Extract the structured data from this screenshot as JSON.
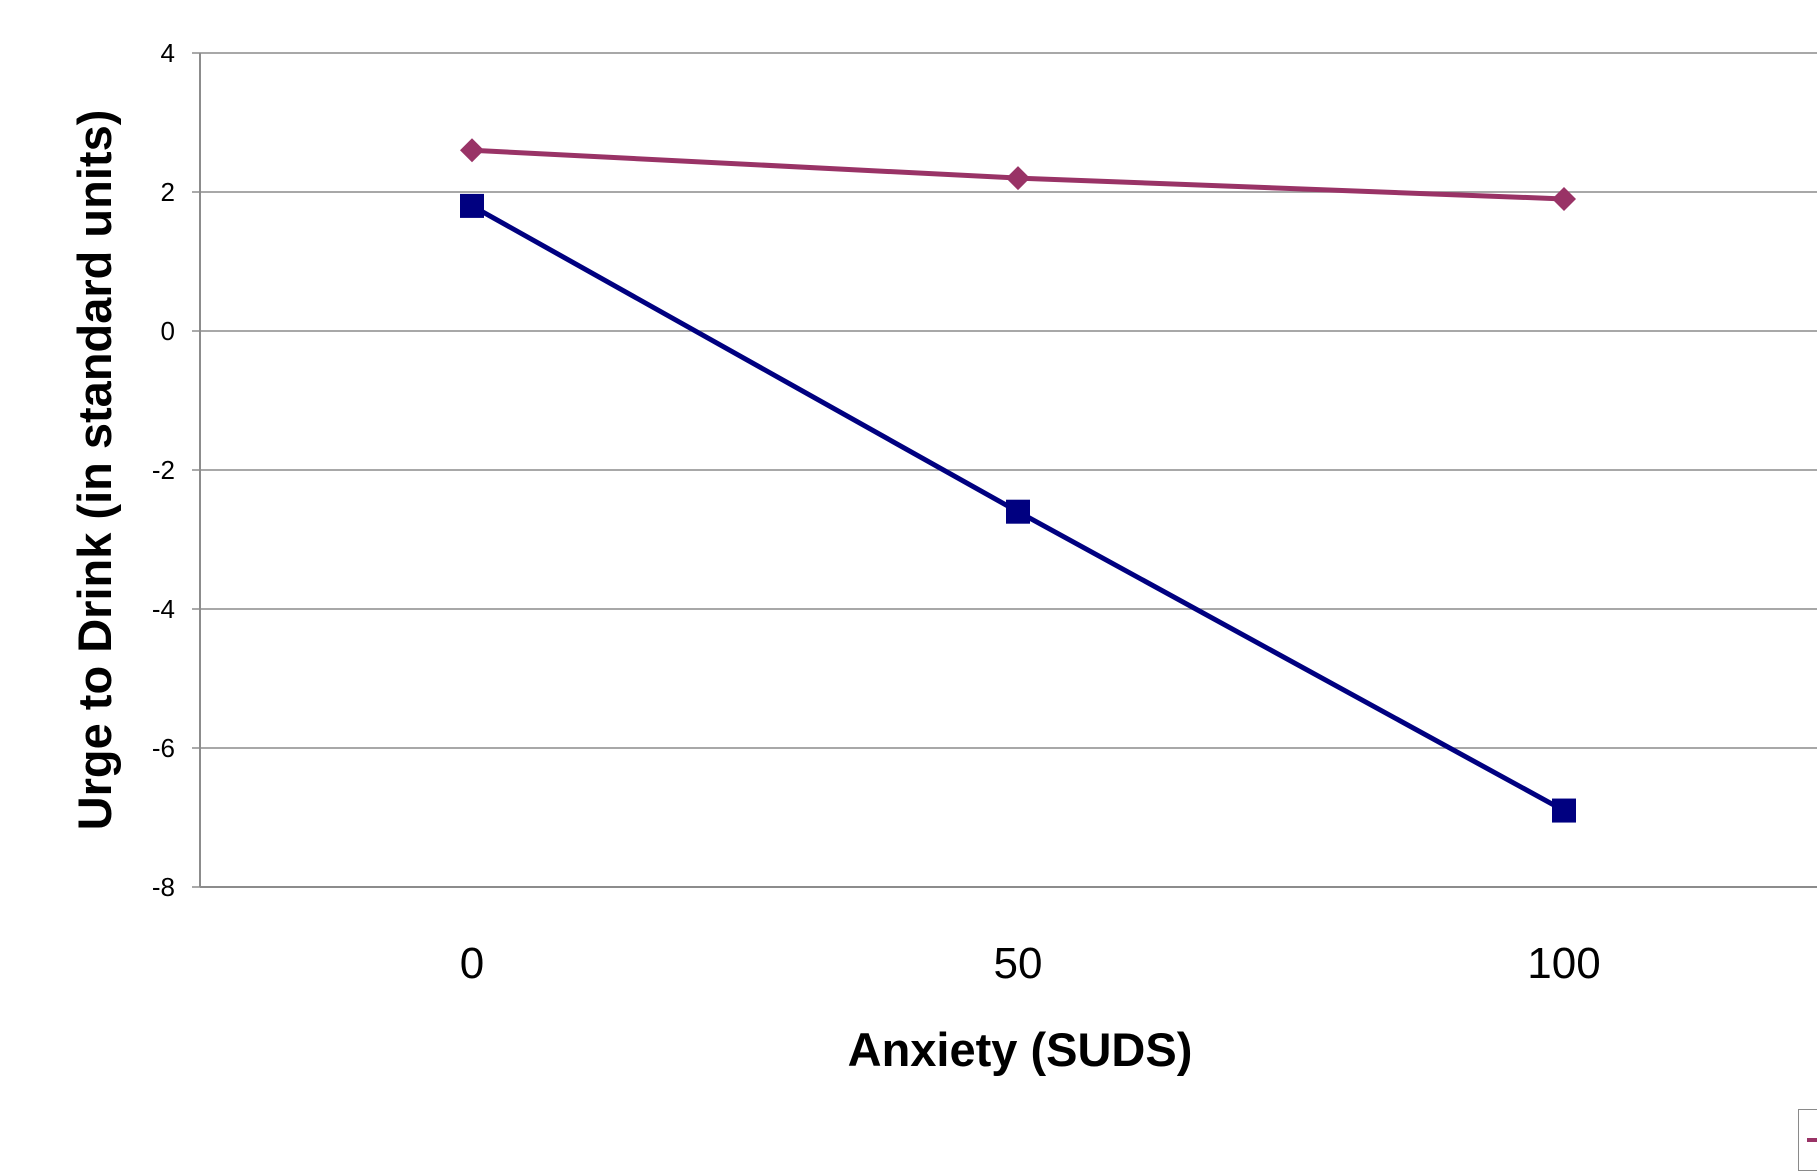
{
  "chart_data": {
    "type": "line",
    "title": "",
    "xlabel": "Anxiety (SUDS)",
    "ylabel": "Urge to Drink (in standard units)",
    "categories": [
      "0",
      "50",
      "100"
    ],
    "ylim": [
      -8,
      4
    ],
    "yticks": [
      4,
      2,
      0,
      -2,
      -4,
      -6,
      -8
    ],
    "ytick_labels": [
      "4",
      "2",
      "0",
      "-2",
      "-4",
      "-6",
      "-8"
    ],
    "grid": true,
    "legend": "bottom-right (cut off)",
    "series": [
      {
        "values": [
          2.6,
          2.2,
          1.9
        ],
        "color": "#993366",
        "marker": "diamond"
      },
      {
        "values": [
          1.8,
          -2.6,
          -6.9
        ],
        "color": "#000080",
        "marker": "square"
      }
    ]
  }
}
